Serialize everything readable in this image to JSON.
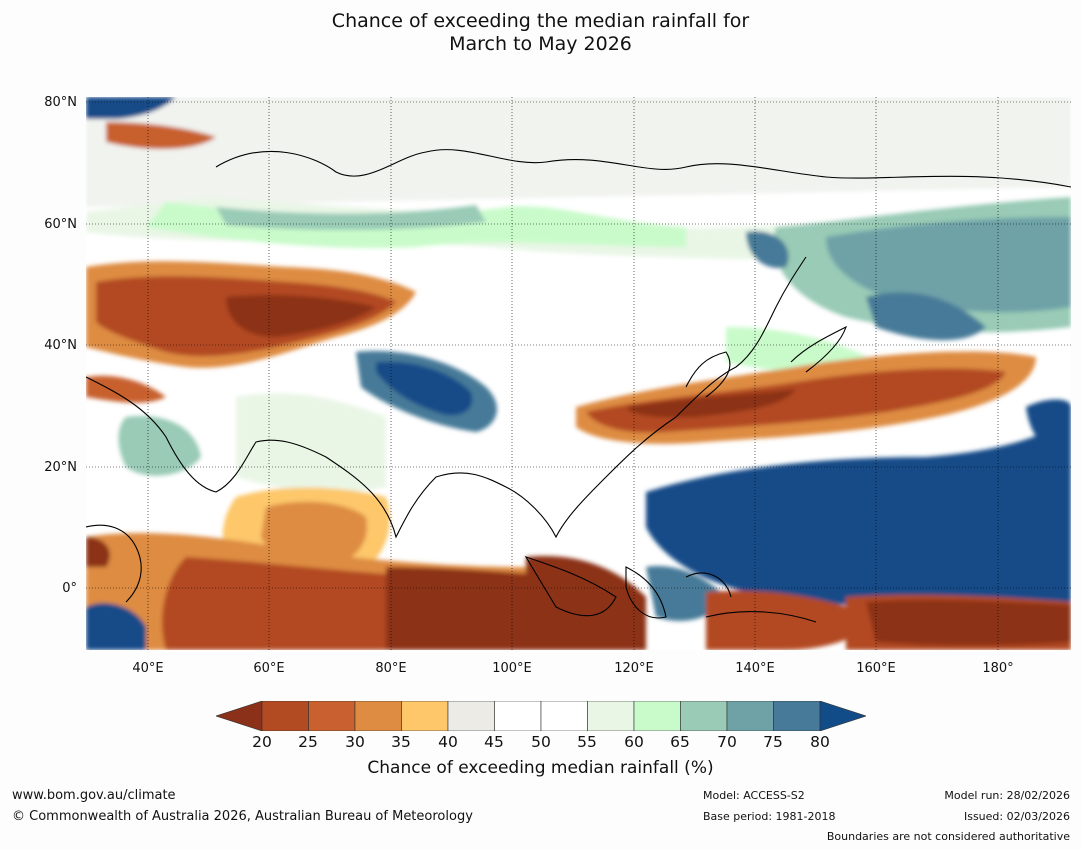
{
  "title": {
    "line1": "Chance of exceeding the median rainfall for",
    "line2": "March to May 2026"
  },
  "map": {
    "lat_labels": [
      "80°N",
      "60°N",
      "40°N",
      "20°N",
      "0°"
    ],
    "lon_labels": [
      "40°E",
      "60°E",
      "80°E",
      "100°E",
      "120°E",
      "140°E",
      "160°E",
      "180°"
    ]
  },
  "colorbar": {
    "ticks": [
      "20",
      "25",
      "30",
      "35",
      "40",
      "45",
      "50",
      "55",
      "60",
      "65",
      "70",
      "75",
      "80"
    ],
    "colors": {
      "lt20": "#8c3119",
      "b20_25": "#b24a22",
      "b25_30": "#c8612f",
      "b30_35": "#de8c42",
      "b35_40": "#fdc76a",
      "b40_45": "#ecebe6",
      "b45_50": "#ffffff",
      "b50_55": "#ffffff",
      "b55_60": "#e9f6e6",
      "b60_65": "#c9fbca",
      "b65_70": "#99cbb6",
      "b70_75": "#6ea2a7",
      "b75_80": "#467a98",
      "gt80": "#124c88"
    },
    "title": "Chance of exceeding median rainfall (%)"
  },
  "footer": {
    "website": "www.bom.gov.au/climate",
    "copyright": "© Commonwealth of Australia 2026, Australian Bureau of Meteorology",
    "model": "Model: ACCESS-S2",
    "base_period": "Base period: 1981-2018",
    "model_run": "Model run: 28/02/2026",
    "issued": "Issued: 02/03/2026",
    "disclaimer": "Boundaries are not considered authoritative"
  }
}
